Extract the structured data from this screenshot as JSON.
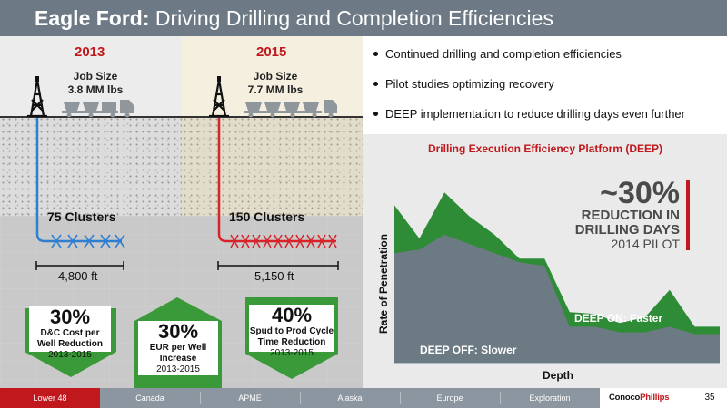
{
  "title": {
    "bold": "Eagle Ford:",
    "rest": " Driving Drilling and Completion Efficiencies"
  },
  "left": {
    "col2013": {
      "year": "2013",
      "job_line1": "Job Size",
      "job_line2": "3.8 MM lbs",
      "clusters": "75 Clusters",
      "distance": "4,800 ft"
    },
    "col2015": {
      "year": "2015",
      "job_line1": "Job Size",
      "job_line2": "7.7 MM lbs",
      "clusters": "150 Clusters",
      "distance": "5,150 ft"
    },
    "metrics": [
      {
        "pct": "30%",
        "line1": "D&C Cost per",
        "line2": "Well Reduction",
        "years": "2013-2015"
      },
      {
        "pct": "30%",
        "line1": "EUR per Well",
        "line2": "Increase",
        "years": "2013-2015"
      },
      {
        "pct": "40%",
        "line1": "Spud to Prod Cycle",
        "line2": "Time Reduction",
        "years": "2013-2015"
      }
    ]
  },
  "bullets": [
    "Continued drilling and completion efficiencies",
    "Pilot studies optimizing recovery",
    "DEEP implementation to reduce drilling days even further"
  ],
  "chart": {
    "title": "Drilling Execution Efficiency Platform (DEEP)",
    "xlabel": "Depth",
    "ylabel": "Rate of Penetration",
    "callout_pct": "~30%",
    "callout_line1": "REDUCTION IN",
    "callout_line2": "DRILLING DAYS",
    "callout_line3": "2014 PILOT",
    "label_on": "DEEP ON: Faster",
    "label_off": "DEEP OFF: Slower",
    "colors": {
      "on": "#2e8b36",
      "off": "#6c7a83",
      "accent": "#c0181c"
    }
  },
  "chart_data": {
    "type": "area",
    "title": "Drilling Execution Efficiency Platform (DEEP)",
    "xlabel": "Depth",
    "ylabel": "Rate of Penetration",
    "x": [
      0,
      1,
      2,
      3,
      4,
      5,
      6,
      7,
      8,
      9,
      10,
      11,
      12,
      13
    ],
    "series": [
      {
        "name": "DEEP ON: Faster",
        "values": [
          86,
          68,
          93,
          80,
          70,
          57,
          57,
          28,
          27,
          22,
          25,
          40,
          20,
          20
        ]
      },
      {
        "name": "DEEP OFF: Slower",
        "values": [
          60,
          62,
          70,
          65,
          60,
          55,
          53,
          20,
          20,
          17,
          17,
          20,
          16,
          16
        ]
      }
    ],
    "ylim": [
      0,
      100
    ],
    "grid": false,
    "legend": "none"
  },
  "footer": {
    "tabs": [
      "Lower 48",
      "Canada",
      "APME",
      "Alaska",
      "Europe",
      "Exploration"
    ],
    "active_tab": "Lower 48",
    "logo_main": "Conoco",
    "logo_accent": "Phillips",
    "page": "35"
  }
}
